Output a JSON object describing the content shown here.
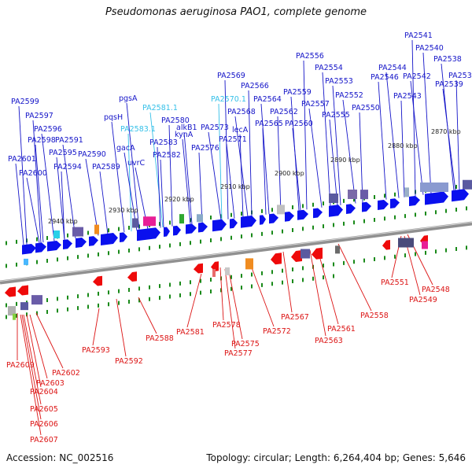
{
  "title": "Pseudomonas aeruginosa PAO1, complete genome",
  "accession": "Accession: NC_002516",
  "footer": "Topology: circular; Length: 6,264,404 bp; Genes: 5,646",
  "colors": {
    "forward": "#0a10ee",
    "reverse": "#ee0a0a",
    "highlight_label": "#35c0e8",
    "backbone": "#909090",
    "tick": "#1a8a1a"
  },
  "scale": [
    "2870 kbp",
    "2880 kbp",
    "2890 kbp",
    "2900 kbp",
    "2910 kbp",
    "2920 kbp",
    "2930 kbp",
    "2940 kbp"
  ],
  "top_labels": [
    {
      "text": "PA2541",
      "hl": false
    },
    {
      "text": "PA2540",
      "hl": false
    },
    {
      "text": "PA2538",
      "hl": false
    },
    {
      "text": "PA2556",
      "hl": false
    },
    {
      "text": "PA2554",
      "hl": false
    },
    {
      "text": "PA2544",
      "hl": false
    },
    {
      "text": "PA2537",
      "hl": false
    },
    {
      "text": "PA2546",
      "hl": false
    },
    {
      "text": "PA2542",
      "hl": false
    },
    {
      "text": "PA2569",
      "hl": false
    },
    {
      "text": "PA2553",
      "hl": false
    },
    {
      "text": "PA2539",
      "hl": false
    },
    {
      "text": "PA2566",
      "hl": false
    },
    {
      "text": "PA2559",
      "hl": false
    },
    {
      "text": "PA2552",
      "hl": false
    },
    {
      "text": "PA2543",
      "hl": false
    },
    {
      "text": "PA2599",
      "hl": false
    },
    {
      "text": "pgsA",
      "hl": false
    },
    {
      "text": "PA2570.1",
      "hl": true
    },
    {
      "text": "PA2564",
      "hl": false
    },
    {
      "text": "PA2557",
      "hl": false
    },
    {
      "text": "PA2550",
      "hl": false
    },
    {
      "text": "PA2597",
      "hl": false
    },
    {
      "text": "PA2581.1",
      "hl": true
    },
    {
      "text": "PA2562",
      "hl": false
    },
    {
      "text": "PA2555",
      "hl": false
    },
    {
      "text": "pqsH",
      "hl": false
    },
    {
      "text": "PA2580",
      "hl": false
    },
    {
      "text": "alkB1",
      "hl": false
    },
    {
      "text": "PA2568",
      "hl": false
    },
    {
      "text": "PA2565",
      "hl": false
    },
    {
      "text": "PA2560",
      "hl": false
    },
    {
      "text": "PA2596",
      "hl": false
    },
    {
      "text": "PA2583.1",
      "hl": true
    },
    {
      "text": "kynA",
      "hl": false
    },
    {
      "text": "PA2573",
      "hl": false
    },
    {
      "text": "lecA",
      "hl": false
    },
    {
      "text": "PA2598",
      "hl": false
    },
    {
      "text": "PA2591",
      "hl": false
    },
    {
      "text": "PA2583",
      "hl": false
    },
    {
      "text": "PA2571",
      "hl": false
    },
    {
      "text": "gacA",
      "hl": false
    },
    {
      "text": "PA2576",
      "hl": false
    },
    {
      "text": "PA2595",
      "hl": false
    },
    {
      "text": "PA2590",
      "hl": false
    },
    {
      "text": "PA2582",
      "hl": false
    },
    {
      "text": "PA2601",
      "hl": false
    },
    {
      "text": "uvrC",
      "hl": false
    },
    {
      "text": "PA2594",
      "hl": false
    },
    {
      "text": "PA2589",
      "hl": false
    },
    {
      "text": "PA2600",
      "hl": false
    }
  ],
  "bottom_labels": [
    "PA2551",
    "PA2548",
    "PA2549",
    "PA2558",
    "PA2567",
    "PA2561",
    "PA2563",
    "PA2581",
    "PA2578",
    "PA2572",
    "PA2588",
    "PA2575",
    "PA2577",
    "PA2593",
    "PA2592",
    "PA2609",
    "PA2602",
    "PA2603",
    "PA2604",
    "PA2605",
    "PA2606",
    "PA2607"
  ]
}
